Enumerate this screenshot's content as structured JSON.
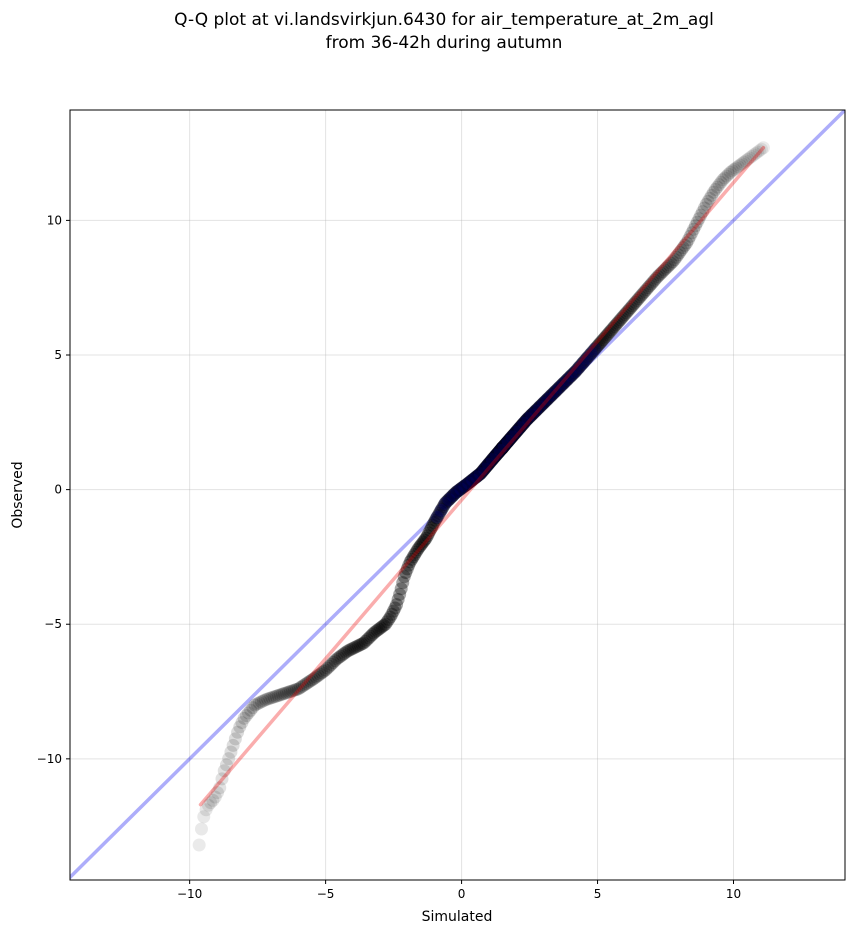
{
  "chart_data": {
    "type": "scatter",
    "title_lines": [
      "Q-Q plot at vi.landsvirkjun.6430 for air_temperature_at_2m_agl",
      "from 36-42h during autumn"
    ],
    "xlabel": "Simulated",
    "ylabel": "Observed",
    "xlim": [
      -14.4,
      14.1
    ],
    "ylim": [
      -14.5,
      14.1
    ],
    "xticks": [
      -10,
      -5,
      0,
      5,
      10
    ],
    "yticks": [
      -10,
      -5,
      0,
      5,
      10
    ],
    "xtick_labels": [
      "−10",
      "−5",
      "0",
      "5",
      "10"
    ],
    "ytick_labels": [
      "−10",
      "−5",
      "0",
      "5",
      "10"
    ],
    "grid": true,
    "identity_line": {
      "color": "#0000ee",
      "opacity": 0.32
    },
    "fit_line": {
      "x": [
        -9.6,
        11.1
      ],
      "y": [
        -11.7,
        12.7
      ],
      "color": "#ee0000",
      "opacity": 0.32
    },
    "point_color": "#000000",
    "point_opacity_range": [
      0.08,
      0.42
    ],
    "central_overlay": {
      "x": [
        -0.9,
        4.9
      ],
      "color": "#00007a"
    },
    "quantile_curve": [
      [
        -9.65,
        -13.2
      ],
      [
        -9.55,
        -12.5
      ],
      [
        -9.45,
        -12.0
      ],
      [
        -9.3,
        -11.7
      ],
      [
        -9.1,
        -11.5
      ],
      [
        -8.9,
        -11.1
      ],
      [
        -8.75,
        -10.5
      ],
      [
        -8.6,
        -10.1
      ],
      [
        -8.4,
        -9.5
      ],
      [
        -8.2,
        -8.9
      ],
      [
        -8.0,
        -8.5
      ],
      [
        -7.6,
        -8.0
      ],
      [
        -7.2,
        -7.8
      ],
      [
        -6.6,
        -7.6
      ],
      [
        -6.0,
        -7.4
      ],
      [
        -5.4,
        -7.0
      ],
      [
        -5.0,
        -6.7
      ],
      [
        -4.6,
        -6.3
      ],
      [
        -4.2,
        -6.0
      ],
      [
        -3.6,
        -5.7
      ],
      [
        -3.2,
        -5.3
      ],
      [
        -2.8,
        -5.0
      ],
      [
        -2.6,
        -4.7
      ],
      [
        -2.4,
        -4.3
      ],
      [
        -2.25,
        -3.8
      ],
      [
        -2.1,
        -3.2
      ],
      [
        -1.9,
        -2.7
      ],
      [
        -1.6,
        -2.2
      ],
      [
        -1.3,
        -1.8
      ],
      [
        -1.0,
        -1.2
      ],
      [
        -0.6,
        -0.5
      ],
      [
        -0.2,
        -0.1
      ],
      [
        0.2,
        0.2
      ],
      [
        0.7,
        0.6
      ],
      [
        1.2,
        1.2
      ],
      [
        1.8,
        1.9
      ],
      [
        2.4,
        2.6
      ],
      [
        3.0,
        3.2
      ],
      [
        3.6,
        3.8
      ],
      [
        4.2,
        4.4
      ],
      [
        4.8,
        5.1
      ],
      [
        5.4,
        5.8
      ],
      [
        6.0,
        6.5
      ],
      [
        6.6,
        7.2
      ],
      [
        7.2,
        7.9
      ],
      [
        7.8,
        8.5
      ],
      [
        8.3,
        9.2
      ],
      [
        8.7,
        10.0
      ],
      [
        9.0,
        10.6
      ],
      [
        9.3,
        11.1
      ],
      [
        9.6,
        11.5
      ],
      [
        9.9,
        11.8
      ],
      [
        10.3,
        12.1
      ],
      [
        10.7,
        12.4
      ],
      [
        11.1,
        12.7
      ]
    ],
    "quantile_count": 420
  }
}
